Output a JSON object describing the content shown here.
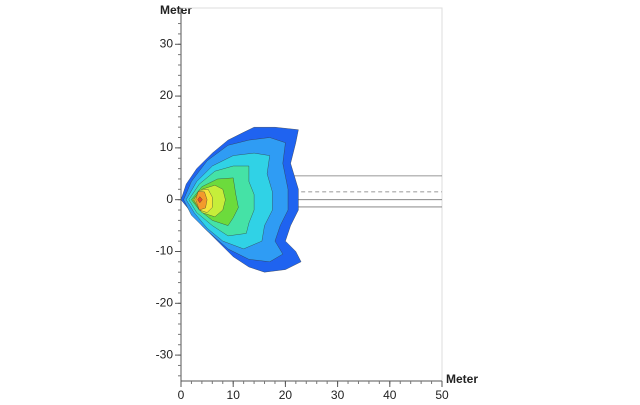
{
  "chart_data": {
    "type": "contour",
    "xlabel": "Meter",
    "ylabel": "Meter",
    "xlim": [
      0,
      50
    ],
    "ylim": [
      -35,
      37
    ],
    "xticks": [
      0,
      10,
      20,
      30,
      40,
      50
    ],
    "yticks": [
      -30,
      -20,
      -10,
      0,
      10,
      20,
      30
    ],
    "xminor": 2,
    "yminor": 2,
    "line_color": "#333333",
    "reference_lines": [
      {
        "y": 4.6,
        "x0": 19,
        "dash": false
      },
      {
        "y": 1.5,
        "x0": 19,
        "dash": true
      },
      {
        "y": 0,
        "x0": 19,
        "dash": false
      },
      {
        "y": -1.4,
        "x0": 19,
        "dash": false
      }
    ],
    "contours": [
      {
        "color": "#1f63f0",
        "x": [
          0,
          1,
          3,
          6,
          9,
          12,
          14,
          18,
          22.5,
          22,
          21,
          22.5,
          22.5,
          21,
          20,
          22,
          23,
          20,
          16,
          13,
          10,
          7,
          4,
          2
        ],
        "y": [
          0,
          3,
          6,
          9,
          11.5,
          13,
          14,
          14,
          13.5,
          11,
          7,
          2,
          -2,
          -5,
          -8,
          -10,
          -12,
          -13.5,
          -14,
          -13,
          -11,
          -8,
          -5,
          -2.5
        ]
      },
      {
        "color": "#2f9cf4",
        "x": [
          0.5,
          2,
          5,
          9,
          13,
          17,
          20,
          19.5,
          20.5,
          20.5,
          19,
          18,
          19.5,
          17,
          13,
          9,
          5,
          2
        ],
        "y": [
          0,
          3.5,
          7.5,
          10.5,
          11.5,
          12,
          11,
          7,
          2,
          -2,
          -5,
          -8,
          -10.5,
          -12,
          -11.5,
          -9.5,
          -6,
          -3
        ]
      },
      {
        "color": "#30d2e6",
        "x": [
          1,
          3,
          6,
          10,
          14,
          17,
          16.5,
          17.5,
          17.5,
          16,
          15.5,
          12,
          8,
          5,
          2.5
        ],
        "y": [
          0,
          3.5,
          6.5,
          8.5,
          9,
          8.5,
          5,
          1.5,
          -2,
          -5,
          -8,
          -9.5,
          -8,
          -5.5,
          -2.5
        ]
      },
      {
        "color": "#45e2a6",
        "x": [
          1.5,
          3.5,
          6.5,
          10,
          13,
          13,
          14,
          14,
          13,
          12.5,
          9,
          6,
          3
        ],
        "y": [
          0,
          3,
          5.5,
          6.5,
          6.5,
          3.5,
          1,
          -2,
          -4.5,
          -6.5,
          -7,
          -5,
          -2.5
        ]
      },
      {
        "color": "#6cdb3c",
        "x": [
          2,
          4,
          7,
          10,
          10.5,
          11,
          10,
          9,
          6,
          3.5
        ],
        "y": [
          0,
          2.5,
          4,
          4.2,
          1,
          -1.5,
          -3.5,
          -5,
          -4,
          -2
        ]
      },
      {
        "color": "#c6ee3a",
        "x": [
          2.3,
          4,
          6.5,
          8,
          8.5,
          8,
          6.5,
          4
        ],
        "y": [
          0,
          2,
          2.8,
          2,
          0,
          -2,
          -3.3,
          -2.5
        ]
      },
      {
        "color": "#f5e63a",
        "x": [
          2.5,
          3.5,
          5.2,
          6,
          6,
          5,
          3.5
        ],
        "y": [
          0,
          1.8,
          2,
          0.5,
          -1.5,
          -2.5,
          -2
        ]
      },
      {
        "color": "#f39a2b",
        "x": [
          2.8,
          3.3,
          4.5,
          5,
          4.7,
          3.5
        ],
        "y": [
          0,
          1.6,
          1.5,
          0,
          -1.6,
          -2
        ]
      },
      {
        "color": "#e84a2a",
        "x": [
          3.2,
          3.6,
          4.1,
          3.6
        ],
        "y": [
          0,
          0.6,
          0,
          -0.6
        ]
      }
    ]
  }
}
